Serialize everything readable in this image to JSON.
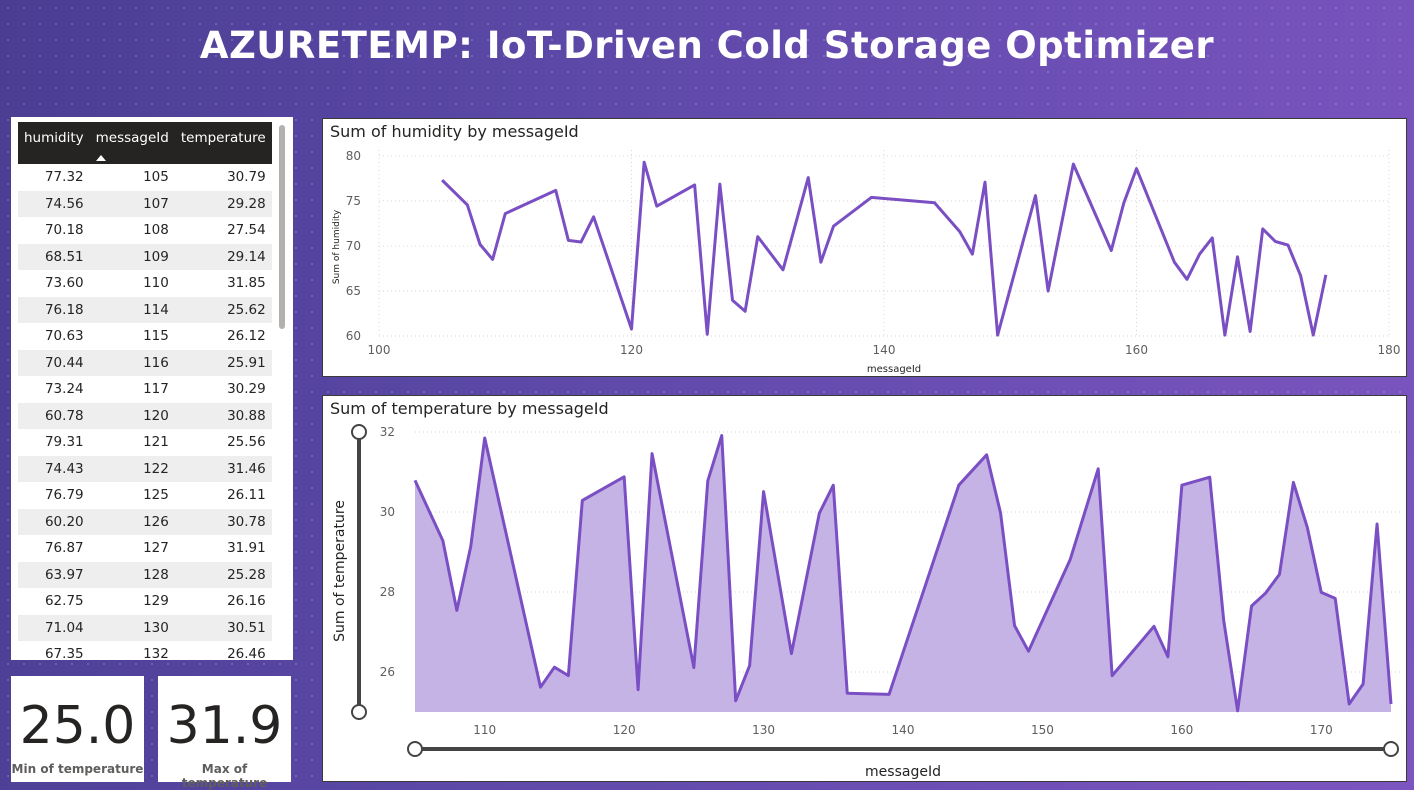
{
  "title": "AZURETEMP: IoT-Driven Cold Storage Optimizer",
  "table": {
    "columns": [
      "humidity",
      "messageId",
      "temperature"
    ],
    "rows": [
      [
        "77.32",
        "105",
        "30.79"
      ],
      [
        "74.56",
        "107",
        "29.28"
      ],
      [
        "70.18",
        "108",
        "27.54"
      ],
      [
        "68.51",
        "109",
        "29.14"
      ],
      [
        "73.60",
        "110",
        "31.85"
      ],
      [
        "76.18",
        "114",
        "25.62"
      ],
      [
        "70.63",
        "115",
        "26.12"
      ],
      [
        "70.44",
        "116",
        "25.91"
      ],
      [
        "73.24",
        "117",
        "30.29"
      ],
      [
        "60.78",
        "120",
        "30.88"
      ],
      [
        "79.31",
        "121",
        "25.56"
      ],
      [
        "74.43",
        "122",
        "31.46"
      ],
      [
        "76.79",
        "125",
        "26.11"
      ],
      [
        "60.20",
        "126",
        "30.78"
      ],
      [
        "76.87",
        "127",
        "31.91"
      ],
      [
        "63.97",
        "128",
        "25.28"
      ],
      [
        "62.75",
        "129",
        "26.16"
      ],
      [
        "71.04",
        "130",
        "30.51"
      ],
      [
        "67.35",
        "132",
        "26.46"
      ]
    ]
  },
  "kpis": {
    "min_value": "25.0",
    "min_label": "Min of temperature",
    "max_value": "31.9",
    "max_label": "Max of temperature"
  },
  "colors": {
    "series": "#7b4fc4",
    "area_fill": "#c6b3e6"
  },
  "chart_data": [
    {
      "type": "line",
      "title": "Sum of humidity by messageId",
      "xlabel": "messageId",
      "ylabel": "Sum of humidity",
      "xlim": [
        100,
        180
      ],
      "ylim": [
        60,
        80
      ],
      "xticks": [
        100,
        120,
        140,
        160,
        180
      ],
      "yticks": [
        60,
        65,
        70,
        75,
        80
      ],
      "grid": true,
      "x": [
        105,
        107,
        108,
        109,
        110,
        114,
        115,
        116,
        117,
        120,
        121,
        122,
        125,
        126,
        127,
        128,
        129,
        130,
        132,
        134,
        135,
        136,
        139,
        144,
        146,
        147,
        148,
        149,
        152,
        153,
        155,
        158,
        159,
        160,
        163,
        164,
        165,
        166,
        167,
        168,
        169,
        170,
        171,
        172,
        173,
        174,
        175
      ],
      "y": [
        77.32,
        74.56,
        70.18,
        68.51,
        73.6,
        76.18,
        70.63,
        70.44,
        73.24,
        60.78,
        79.31,
        74.43,
        76.79,
        60.2,
        76.87,
        63.97,
        62.75,
        71.04,
        67.35,
        77.6,
        68.2,
        72.2,
        75.4,
        74.8,
        71.6,
        69.1,
        77.1,
        60.1,
        75.6,
        65.0,
        79.1,
        69.5,
        74.8,
        78.6,
        68.2,
        66.3,
        69.1,
        70.9,
        60.1,
        68.8,
        60.5,
        71.9,
        70.5,
        70.1,
        66.7,
        60.1,
        66.8
      ]
    },
    {
      "type": "area",
      "title": "Sum of temperature by messageId",
      "xlabel": "messageId",
      "ylabel": "Sum of temperature",
      "xlim": [
        105,
        175
      ],
      "ylim": [
        25,
        32
      ],
      "xticks": [
        110,
        120,
        130,
        140,
        150,
        160,
        170
      ],
      "yticks": [
        26,
        28,
        30,
        32
      ],
      "grid": true,
      "x": [
        105,
        107,
        108,
        109,
        110,
        114,
        115,
        116,
        117,
        120,
        121,
        122,
        125,
        126,
        127,
        128,
        129,
        130,
        132,
        134,
        135,
        136,
        139,
        144,
        146,
        147,
        148,
        149,
        152,
        154,
        155,
        158,
        159,
        160,
        162,
        163,
        164,
        165,
        166,
        167,
        168,
        169,
        170,
        171,
        172,
        173,
        174,
        175
      ],
      "y": [
        30.79,
        29.28,
        27.54,
        29.14,
        31.85,
        25.62,
        26.12,
        25.91,
        30.29,
        30.88,
        25.56,
        31.46,
        26.11,
        30.78,
        31.91,
        25.28,
        26.16,
        30.51,
        26.46,
        29.97,
        30.67,
        25.47,
        25.44,
        30.67,
        31.43,
        29.97,
        27.16,
        26.52,
        28.82,
        31.08,
        25.91,
        27.14,
        26.38,
        30.67,
        30.87,
        27.29,
        25.03,
        27.65,
        27.97,
        28.44,
        30.74,
        29.61,
        27.99,
        27.84,
        25.2,
        25.7,
        29.7,
        25.2
      ]
    }
  ]
}
